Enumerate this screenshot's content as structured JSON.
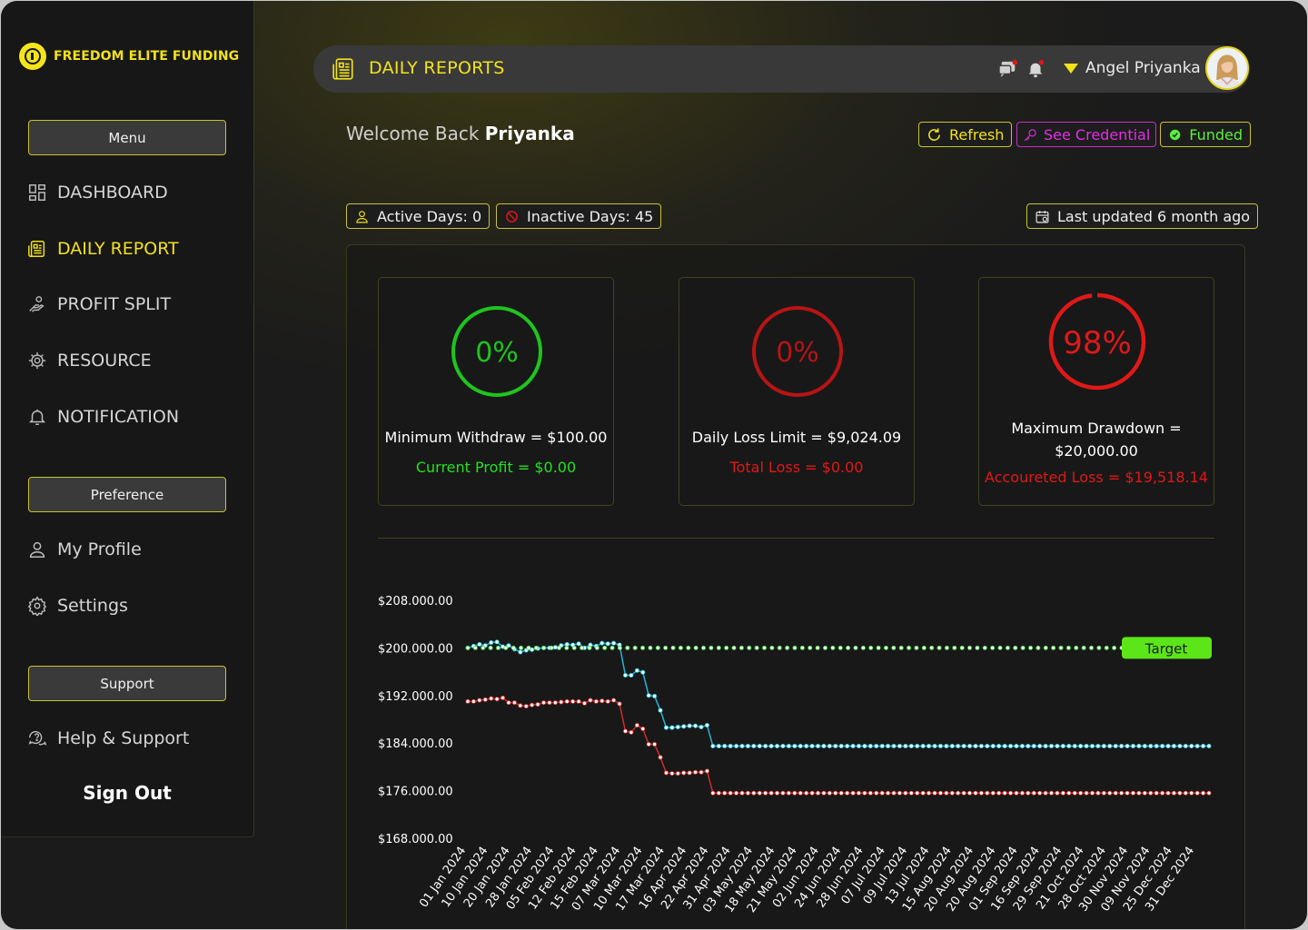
{
  "brand": {
    "name_part1": "FREEDOM ",
    "name_part2": "ELITE FUNDING"
  },
  "sidebar": {
    "menu_label": "Menu",
    "main_items": [
      {
        "label": "DASHBOARD",
        "icon": "dashboard-icon"
      },
      {
        "label": "DAILY REPORT",
        "icon": "report-icon",
        "active": true
      },
      {
        "label": "PROFIT SPLIT",
        "icon": "hand-coin-icon"
      },
      {
        "label": "RESOURCE",
        "icon": "gear-badge-icon"
      },
      {
        "label": "NOTIFICATION",
        "icon": "bell-icon"
      }
    ],
    "preference_label": "Preference",
    "pref_items": [
      {
        "label": "My Profile",
        "icon": "user-icon"
      },
      {
        "label": "Settings",
        "icon": "settings-icon"
      }
    ],
    "support_label": "Support",
    "support_items": [
      {
        "label": "Help & Support",
        "icon": "help-icon"
      }
    ],
    "signout": "Sign Out"
  },
  "header": {
    "title": "DAILY REPORTS",
    "user_name": "Angel Priyanka"
  },
  "welcome": {
    "prefix": "Welcome Back ",
    "name": "Priyanka"
  },
  "actions": {
    "refresh": "Refresh",
    "credential": "See Credential",
    "funded": "Funded"
  },
  "status": {
    "active_days": "Active Days: 0",
    "inactive_days": "Inactive Days: 45",
    "last_updated": "Last updated 6 month ago"
  },
  "cards": [
    {
      "percent": "0%",
      "line1": "Minimum Withdraw = $100.00",
      "line2": "Current Profit = $0.00",
      "color": "#1fc41f",
      "line2_color": "#22e022",
      "progress": 0
    },
    {
      "percent": "0%",
      "line1": "Daily Loss Limit = $9,024.09",
      "line2": "Total Loss = $0.00",
      "color": "#b81414",
      "line2_color": "#e01818",
      "progress": 0
    },
    {
      "percent": "98%",
      "line1a": "Maximum Drawdown =",
      "line1b": "$20,000.00",
      "line2": "Accoureted Loss = $19,518.14",
      "color": "#e01818",
      "line2_color": "#e01818",
      "progress": 98
    }
  ],
  "chart_data": {
    "type": "line",
    "yticks": [
      "$208.000.00",
      "$200.000.00",
      "$192.000.00",
      "$184.000.00",
      "$176.000.00",
      "$168.000.00"
    ],
    "ylim": [
      168000,
      208000
    ],
    "target_label": "Target",
    "target_value": 200000,
    "xticks": [
      "01 Jan 2024",
      "10 Jan 2024",
      "20 Jan 2024",
      "28 Jan 2024",
      "05 Feb 2024",
      "12 Feb 2024",
      "15 Feb 2024",
      "07 Mar 2024",
      "10 Mar 2024",
      "17 Mar 2024",
      "16 Apr 2024",
      "22 Apr 2024",
      "31 Apr 2024",
      "03 May 2024",
      "18 May 2024",
      "21 May 2024",
      "02 Jun 2024",
      "24 Jun 2024",
      "28 Jun 2024",
      "07 Jul 2024",
      "09 Jul 2024",
      "13 Jul 2024",
      "15 Aug 2024",
      "20 Aug 2024",
      "20 Aug 2024",
      "01 Sep 2024",
      "16 Sep 2024",
      "29 Sep 2024",
      "21 Oct 2024",
      "28 Oct 2024",
      "30 Nov 2024",
      "09 Nov 2024",
      "25 Dec 2024",
      "31 Dec 2024"
    ],
    "series": [
      {
        "color": "#22c8e8",
        "values": [
          200000,
          200300,
          200600,
          200400,
          200900,
          201000,
          200200,
          200400,
          199800,
          199300,
          199600,
          199700,
          199900,
          200000,
          200000,
          200100,
          200400,
          200600,
          200500,
          200700,
          200000,
          200500,
          200300,
          200800,
          200700,
          200800,
          200500,
          195400,
          195400,
          196200,
          195900,
          192000,
          191900,
          189500,
          186600,
          186600,
          186700,
          186800,
          186900,
          186900,
          186700,
          187000,
          183500,
          183500,
          183500,
          183500,
          183500,
          183500,
          183500,
          183500,
          183500,
          183500,
          183500,
          183500,
          183500,
          183500,
          183500,
          183500,
          183500,
          183500,
          183500,
          183500,
          183500,
          183500,
          183500,
          183500,
          183500,
          183500,
          183500,
          183500,
          183500,
          183500,
          183500,
          183500,
          183500,
          183500,
          183500,
          183500,
          183500,
          183500,
          183500,
          183500,
          183500,
          183500,
          183500,
          183500,
          183500,
          183500,
          183500,
          183500,
          183500,
          183500,
          183500,
          183500,
          183500,
          183500,
          183500,
          183500,
          183500,
          183500,
          183500,
          183500,
          183500,
          183500,
          183500,
          183500,
          183500,
          183500,
          183500,
          183500,
          183500,
          183500,
          183500,
          183500,
          183500,
          183500,
          183500,
          183500,
          183500,
          183500,
          183500,
          183500,
          183500,
          183500,
          183500,
          183500,
          183500,
          183500
        ]
      },
      {
        "color": "#e23030",
        "values": [
          191000,
          191000,
          191200,
          191300,
          191500,
          191400,
          191600,
          190800,
          190800,
          190300,
          190200,
          190400,
          190500,
          190800,
          190800,
          190800,
          190900,
          191000,
          191000,
          191000,
          190700,
          191200,
          191000,
          191100,
          191000,
          191200,
          190600,
          186000,
          185800,
          187000,
          186400,
          183800,
          183800,
          181600,
          179000,
          178900,
          178900,
          179000,
          179000,
          179100,
          179100,
          179300,
          175600,
          175600,
          175600,
          175600,
          175600,
          175600,
          175600,
          175600,
          175600,
          175600,
          175600,
          175600,
          175600,
          175600,
          175600,
          175600,
          175600,
          175600,
          175600,
          175600,
          175600,
          175600,
          175600,
          175600,
          175600,
          175600,
          175600,
          175600,
          175600,
          175600,
          175600,
          175600,
          175600,
          175600,
          175600,
          175600,
          175600,
          175600,
          175600,
          175600,
          175600,
          175600,
          175600,
          175600,
          175600,
          175600,
          175600,
          175600,
          175600,
          175600,
          175600,
          175600,
          175600,
          175600,
          175600,
          175600,
          175600,
          175600,
          175600,
          175600,
          175600,
          175600,
          175600,
          175600,
          175600,
          175600,
          175600,
          175600,
          175600,
          175600,
          175600,
          175600,
          175600,
          175600,
          175600,
          175600,
          175600,
          175600,
          175600,
          175600,
          175600,
          175600,
          175600,
          175600,
          175600,
          175600
        ]
      },
      {
        "color": "#33d633",
        "values": [
          200000
        ]
      }
    ]
  }
}
